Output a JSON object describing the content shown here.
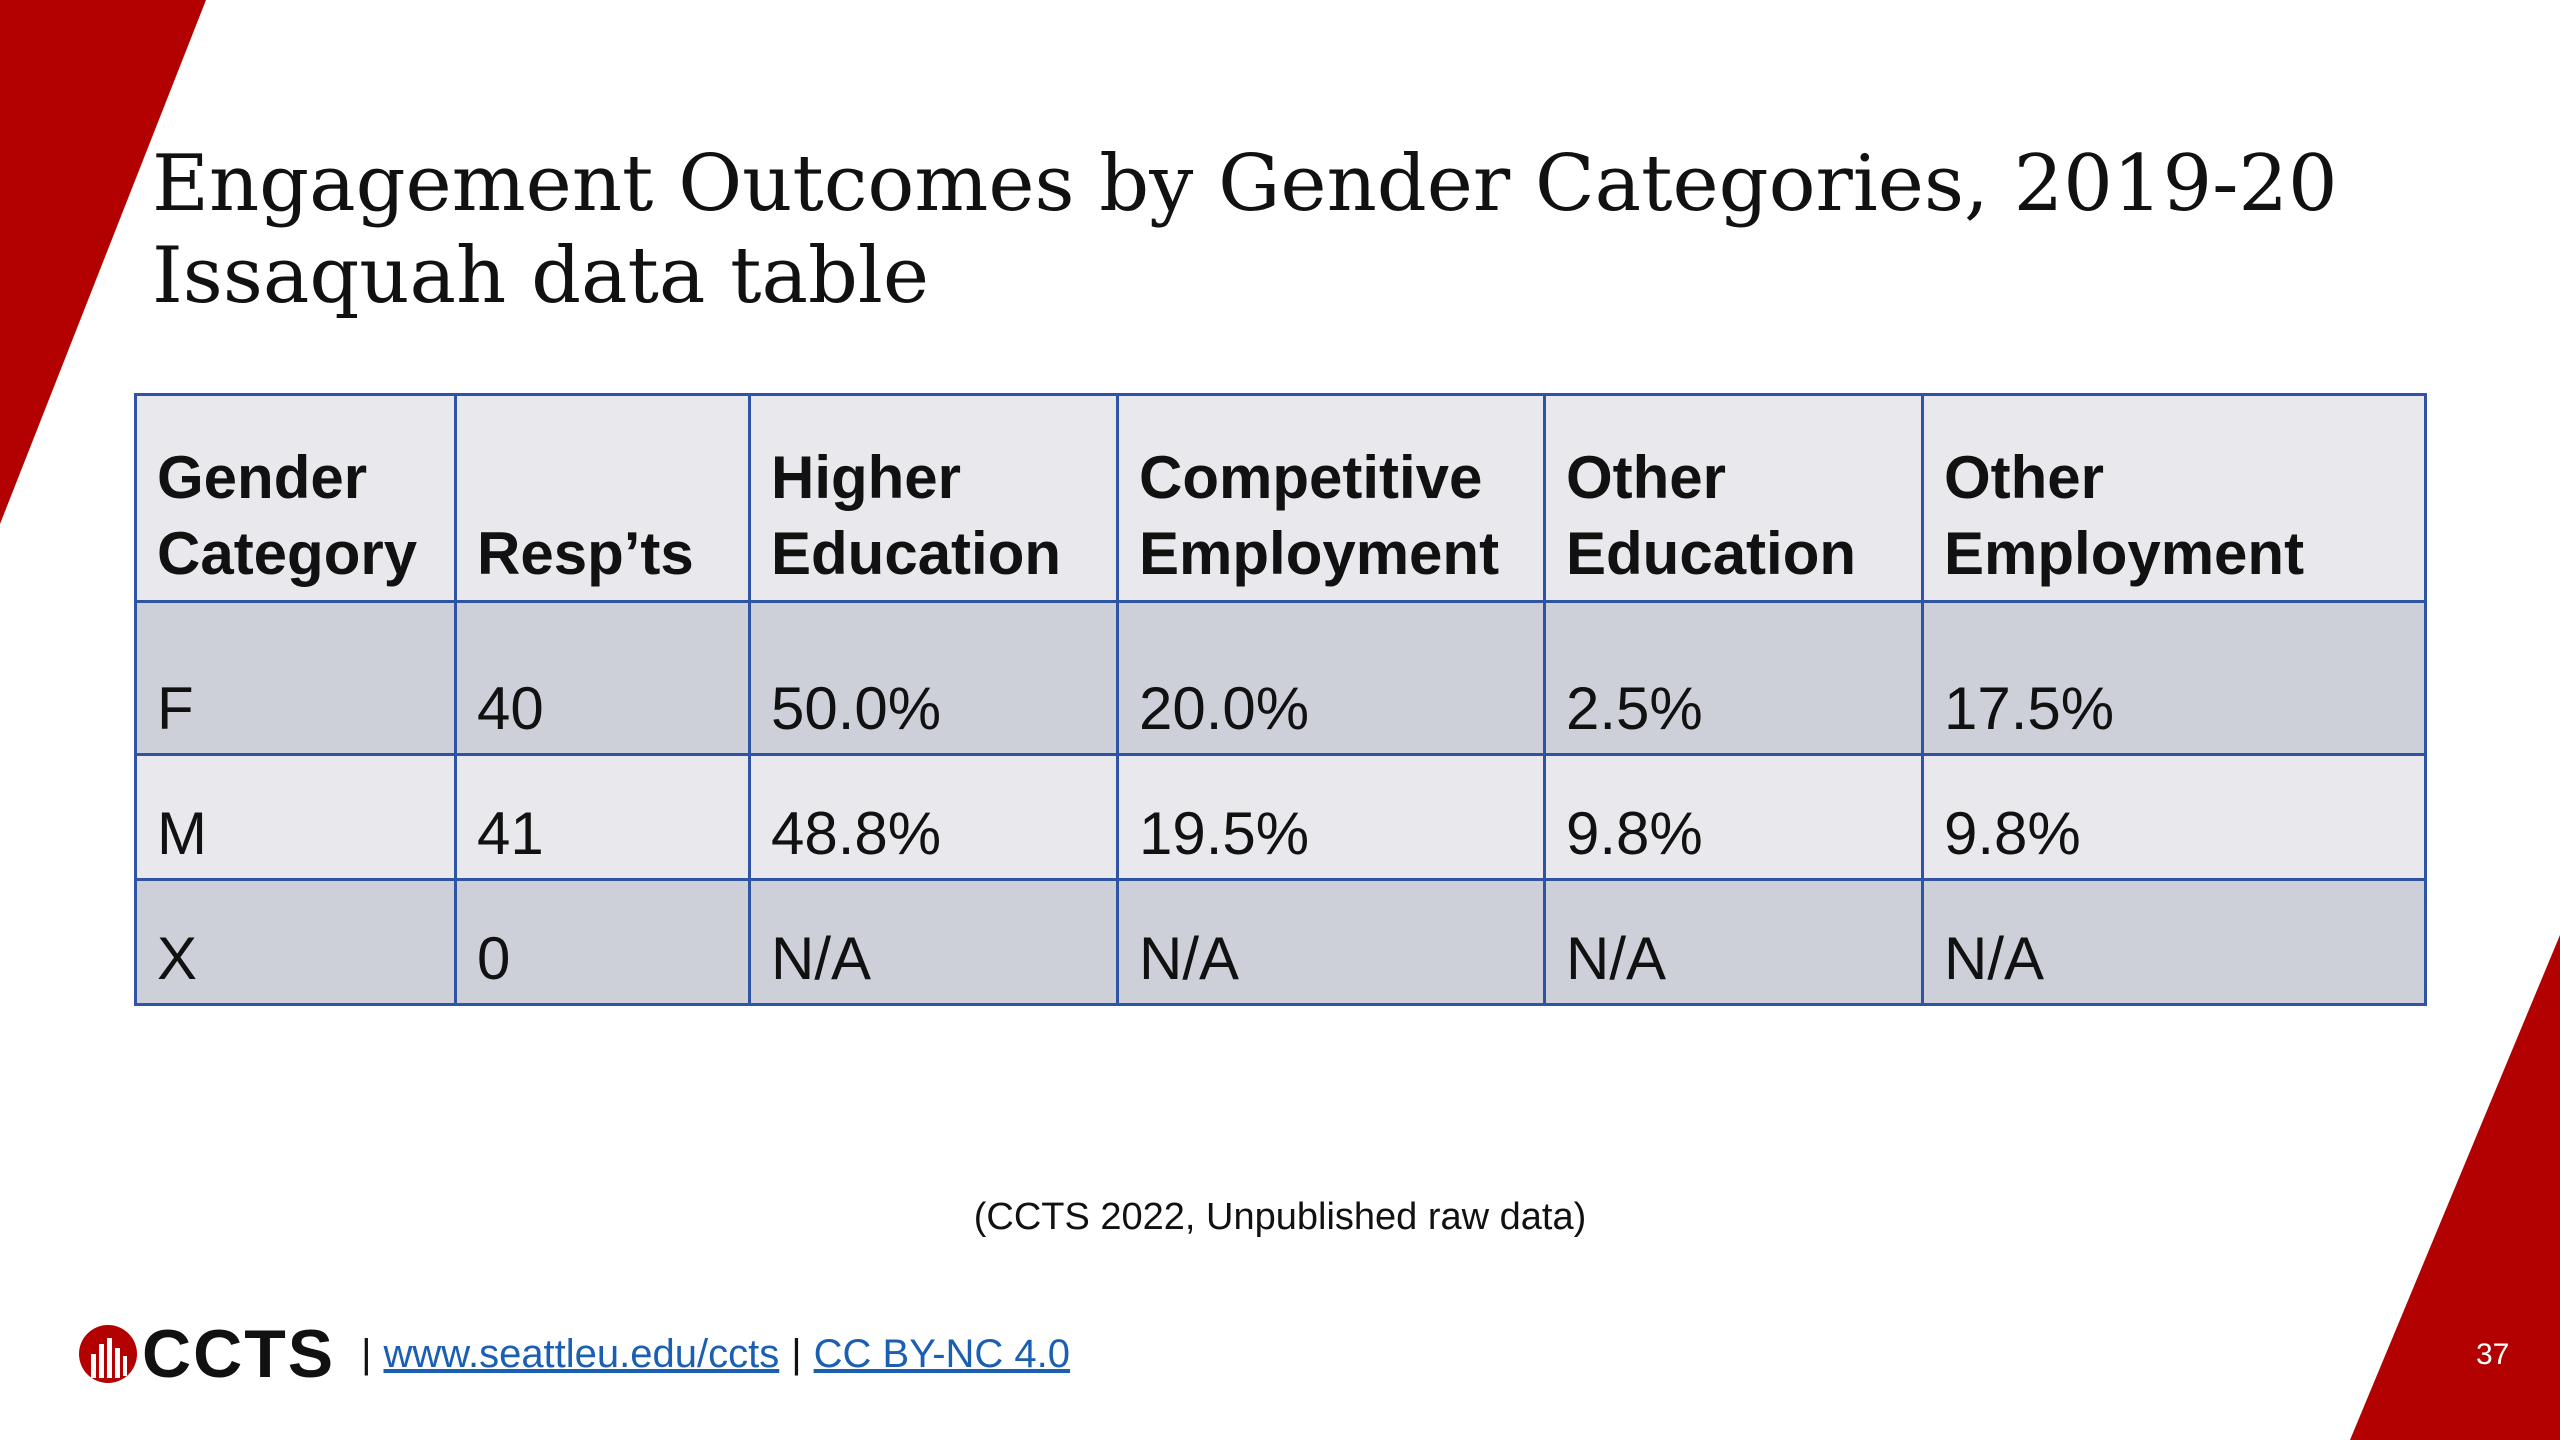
{
  "title": {
    "line1": "Engagement Outcomes by Gender Categories, 2019-20",
    "line2": "Issaquah data table"
  },
  "table": {
    "headers": [
      [
        "Gender",
        "Category"
      ],
      [
        "",
        "Resp’ts"
      ],
      [
        "Higher",
        "Education"
      ],
      [
        "Competitive",
        "Employment"
      ],
      [
        "Other",
        "Education"
      ],
      [
        "Other",
        "Employment"
      ]
    ],
    "rows": [
      [
        "F",
        "40",
        "50.0%",
        "20.0%",
        "2.5%",
        "17.5%"
      ],
      [
        "M",
        "41",
        "48.8%",
        "19.5%",
        "9.8%",
        "9.8%"
      ],
      [
        "X",
        "0",
        "N/A",
        "N/A",
        "N/A",
        "N/A"
      ]
    ]
  },
  "citation": "(CCTS 2022, Unpublished raw data)",
  "footer": {
    "logo_text": "CCTS",
    "separator": "|",
    "link1": "www.seattleu.edu/ccts",
    "link2": "CC BY-NC 4.0"
  },
  "slide_number": "37",
  "colors": {
    "accent_red": "#b30000",
    "table_border": "#2f54a3",
    "header_bg": "#e8e8ed",
    "band_dark": "#cdcfd9",
    "band_light": "#e8e8ed",
    "link": "#1a5fb4"
  }
}
